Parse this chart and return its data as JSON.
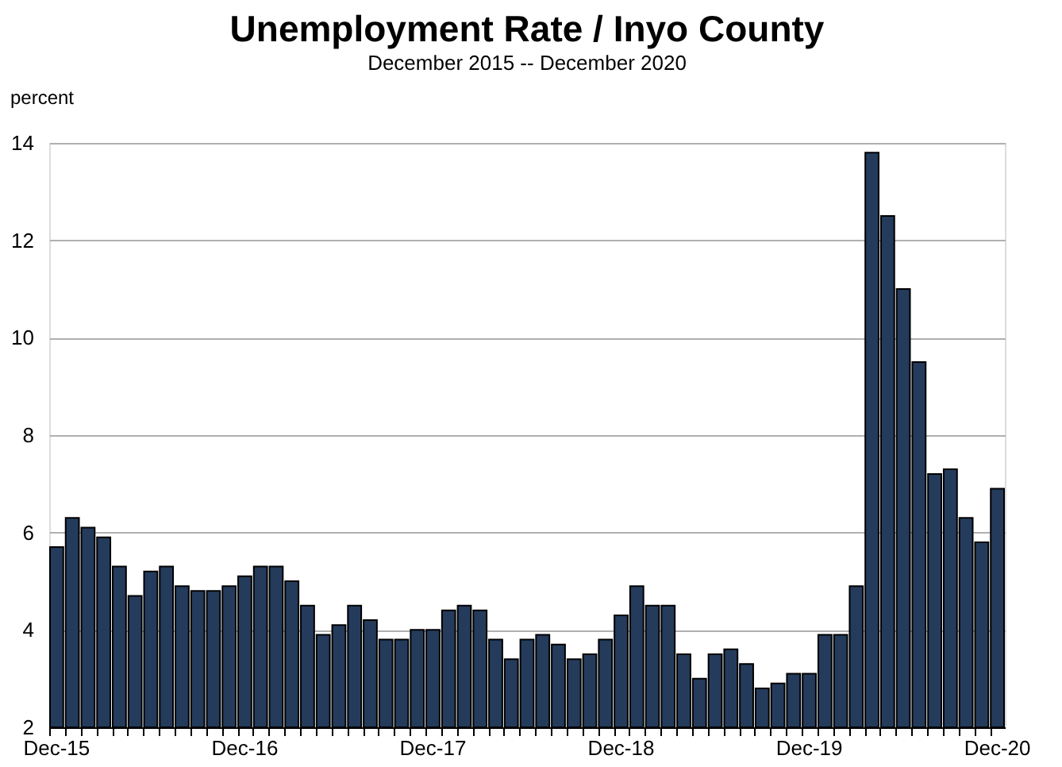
{
  "chart_data": {
    "type": "bar",
    "title": "Unemployment Rate / Inyo County",
    "subtitle": "December 2015 -- December 2020",
    "ylabel": "percent",
    "categories": [
      "Dec-15",
      null,
      null,
      null,
      null,
      null,
      null,
      null,
      null,
      null,
      null,
      null,
      "Dec-16",
      null,
      null,
      null,
      null,
      null,
      null,
      null,
      null,
      null,
      null,
      null,
      "Dec-17",
      null,
      null,
      null,
      null,
      null,
      null,
      null,
      null,
      null,
      null,
      null,
      "Dec-18",
      null,
      null,
      null,
      null,
      null,
      null,
      null,
      null,
      null,
      null,
      null,
      "Dec-19",
      null,
      null,
      null,
      null,
      null,
      null,
      null,
      null,
      null,
      null,
      null,
      "Dec-20"
    ],
    "values": [
      5.7,
      6.3,
      6.1,
      5.9,
      5.3,
      4.7,
      5.2,
      5.3,
      4.9,
      4.8,
      4.8,
      4.9,
      5.1,
      5.3,
      5.3,
      5.0,
      4.5,
      3.9,
      4.1,
      4.5,
      4.2,
      3.8,
      3.8,
      4.0,
      4.0,
      4.4,
      4.5,
      4.4,
      3.8,
      3.4,
      3.8,
      3.9,
      3.7,
      3.4,
      3.5,
      3.8,
      4.3,
      4.9,
      4.5,
      4.5,
      3.5,
      3.0,
      3.5,
      3.6,
      3.3,
      2.8,
      2.9,
      3.1,
      3.1,
      3.9,
      3.9,
      4.9,
      13.8,
      12.5,
      11.0,
      9.5,
      7.2,
      7.3,
      6.3,
      5.8,
      6.9
    ],
    "color": "#243b5c",
    "ylim": [
      2,
      14
    ],
    "yticks": [
      2,
      4,
      6,
      8,
      10,
      12,
      14
    ],
    "grid": "y"
  }
}
